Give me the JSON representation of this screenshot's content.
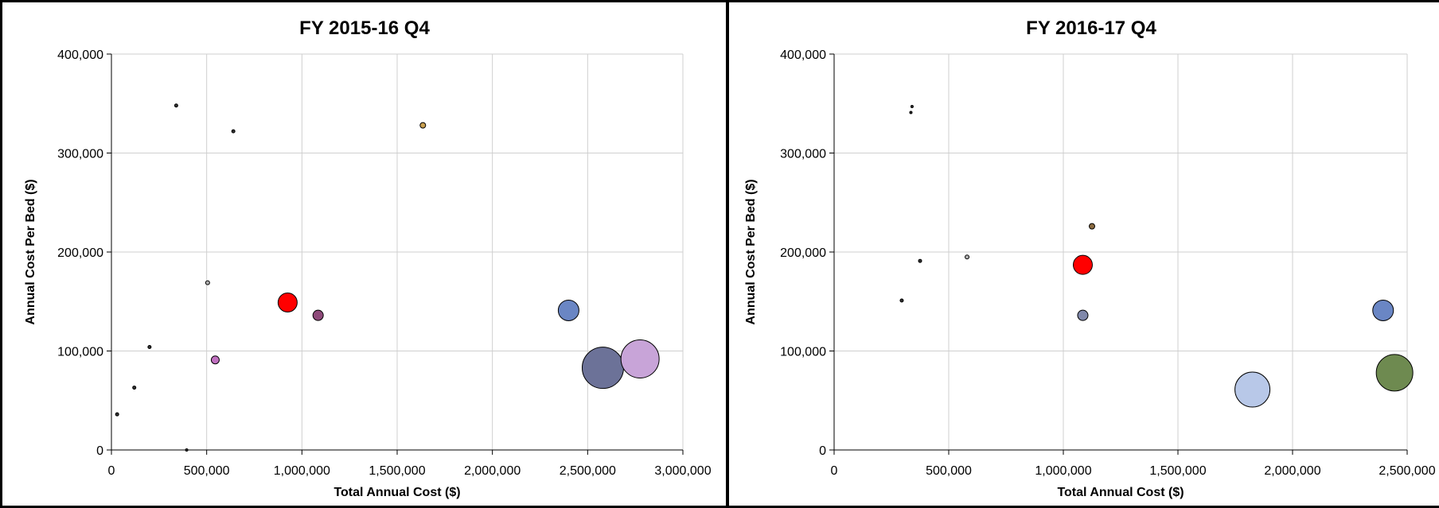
{
  "chart_data": [
    {
      "type": "scatter",
      "title": "FY 2015-16 Q4",
      "xlabel": "Total Annual Cost ($)",
      "ylabel": "Annual Cost Per Bed ($)",
      "xlim": [
        0,
        3000000
      ],
      "ylim": [
        0,
        400000
      ],
      "x_ticks": [
        "0",
        "500,000",
        "1,000,000",
        "1,500,000",
        "2,000,000",
        "2,500,000",
        "3,000,000"
      ],
      "y_ticks": [
        "0",
        "100,000",
        "200,000",
        "300,000",
        "400,000"
      ],
      "grid": true,
      "points": [
        {
          "x": 340000,
          "y": 348000,
          "r": 2,
          "color": "#333333"
        },
        {
          "x": 640000,
          "y": 322000,
          "r": 2,
          "color": "#333333"
        },
        {
          "x": 1635000,
          "y": 328000,
          "r": 3.5,
          "color": "#c9a050"
        },
        {
          "x": 505000,
          "y": 169000,
          "r": 2.5,
          "color": "#b0b0b0"
        },
        {
          "x": 200000,
          "y": 104000,
          "r": 2,
          "color": "#333333"
        },
        {
          "x": 120000,
          "y": 63000,
          "r": 2,
          "color": "#333333"
        },
        {
          "x": 30000,
          "y": 36000,
          "r": 2,
          "color": "#333333"
        },
        {
          "x": 395000,
          "y": 0,
          "r": 1.5,
          "color": "#333333"
        },
        {
          "x": 545000,
          "y": 91000,
          "r": 5,
          "color": "#c070c0"
        },
        {
          "x": 925000,
          "y": 149000,
          "r": 12,
          "color": "#ff0000",
          "outline": "none"
        },
        {
          "x": 1085000,
          "y": 136000,
          "r": 6.5,
          "color": "#8e4a7a"
        },
        {
          "x": 2400000,
          "y": 141000,
          "r": 13,
          "color": "#6a86c4"
        },
        {
          "x": 2580000,
          "y": 83000,
          "r": 26,
          "color": "#6c7298"
        },
        {
          "x": 2775000,
          "y": 92000,
          "r": 24,
          "color": "#c8a4d8"
        }
      ]
    },
    {
      "type": "scatter",
      "title": "FY 2016-17 Q4",
      "xlabel": "Total Annual Cost ($)",
      "ylabel": "Annual Cost Per Bed ($)",
      "xlim": [
        0,
        2500000
      ],
      "ylim": [
        0,
        400000
      ],
      "x_ticks": [
        "0",
        "500,000",
        "1,000,000",
        "1,500,000",
        "2,000,000",
        "2,500,000"
      ],
      "y_ticks": [
        "0",
        "100,000",
        "200,000",
        "300,000",
        "400,000"
      ],
      "grid": true,
      "points": [
        {
          "x": 340000,
          "y": 347000,
          "r": 1.5,
          "color": "#333333"
        },
        {
          "x": 335000,
          "y": 341000,
          "r": 1.5,
          "color": "#333333"
        },
        {
          "x": 1125000,
          "y": 226000,
          "r": 3.5,
          "color": "#8a6a40"
        },
        {
          "x": 580000,
          "y": 195000,
          "r": 2.5,
          "color": "#b0b0b0"
        },
        {
          "x": 375000,
          "y": 191000,
          "r": 2,
          "color": "#333333"
        },
        {
          "x": 295000,
          "y": 151000,
          "r": 2,
          "color": "#333333"
        },
        {
          "x": 1085000,
          "y": 187000,
          "r": 12,
          "color": "#ff0000",
          "outline": "none"
        },
        {
          "x": 1085000,
          "y": 136000,
          "r": 6.5,
          "color": "#8088aa"
        },
        {
          "x": 2395000,
          "y": 141000,
          "r": 13,
          "color": "#6a86c4"
        },
        {
          "x": 1825000,
          "y": 61000,
          "r": 22,
          "color": "#b8c8e8"
        },
        {
          "x": 2445000,
          "y": 78000,
          "r": 23,
          "color": "#6e8a50"
        }
      ]
    }
  ]
}
